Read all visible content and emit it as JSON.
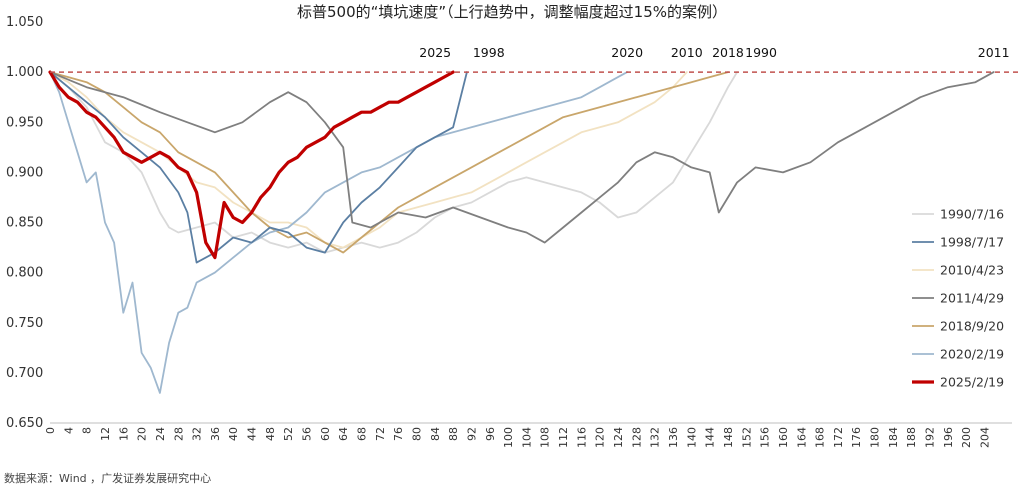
{
  "title": "标普500的“填坑速度”（上行趋势中，调整幅度超过15%的案例）",
  "source": "数据来源：Wind ，广发证券发展研究中心",
  "chart_data": {
    "type": "line",
    "ylim": [
      0.65,
      1.05
    ],
    "yticks": [
      "0.650",
      "0.700",
      "0.750",
      "0.800",
      "0.850",
      "0.900",
      "0.950",
      "1.000",
      "1.050"
    ],
    "xlim": [
      0,
      210
    ],
    "xticks": [
      "0",
      "4",
      "8",
      "12",
      "16",
      "20",
      "24",
      "28",
      "32",
      "36",
      "40",
      "44",
      "48",
      "52",
      "56",
      "60",
      "64",
      "68",
      "72",
      "76",
      "80",
      "84",
      "88",
      "92",
      "96",
      "100",
      "104",
      "108",
      "112",
      "116",
      "120",
      "124",
      "128",
      "132",
      "136",
      "140",
      "144",
      "148",
      "152",
      "156",
      "160",
      "164",
      "168",
      "172",
      "176",
      "180",
      "184",
      "188",
      "192",
      "196",
      "200",
      "204"
    ],
    "reference_line": 1.0,
    "series": [
      {
        "name": "1990/7/16",
        "color": "#d9d9d9",
        "width": 1.8,
        "end_label": "1990",
        "points": [
          [
            0,
            1.0
          ],
          [
            4,
            0.985
          ],
          [
            8,
            0.965
          ],
          [
            12,
            0.93
          ],
          [
            16,
            0.92
          ],
          [
            20,
            0.9
          ],
          [
            24,
            0.86
          ],
          [
            26,
            0.845
          ],
          [
            28,
            0.84
          ],
          [
            32,
            0.845
          ],
          [
            36,
            0.85
          ],
          [
            40,
            0.835
          ],
          [
            44,
            0.84
          ],
          [
            48,
            0.83
          ],
          [
            52,
            0.825
          ],
          [
            56,
            0.83
          ],
          [
            60,
            0.82
          ],
          [
            64,
            0.825
          ],
          [
            68,
            0.83
          ],
          [
            72,
            0.825
          ],
          [
            76,
            0.83
          ],
          [
            80,
            0.84
          ],
          [
            84,
            0.855
          ],
          [
            88,
            0.865
          ],
          [
            92,
            0.87
          ],
          [
            96,
            0.88
          ],
          [
            100,
            0.89
          ],
          [
            104,
            0.895
          ],
          [
            108,
            0.89
          ],
          [
            112,
            0.885
          ],
          [
            116,
            0.88
          ],
          [
            120,
            0.87
          ],
          [
            124,
            0.855
          ],
          [
            128,
            0.86
          ],
          [
            132,
            0.875
          ],
          [
            136,
            0.89
          ],
          [
            140,
            0.92
          ],
          [
            144,
            0.95
          ],
          [
            148,
            0.985
          ],
          [
            150,
            1.0
          ]
        ]
      },
      {
        "name": "1998/7/17",
        "color": "#5b7fa3",
        "width": 1.8,
        "end_label": "1998",
        "points": [
          [
            0,
            1.0
          ],
          [
            4,
            0.985
          ],
          [
            8,
            0.97
          ],
          [
            12,
            0.955
          ],
          [
            16,
            0.935
          ],
          [
            20,
            0.92
          ],
          [
            24,
            0.905
          ],
          [
            28,
            0.88
          ],
          [
            30,
            0.86
          ],
          [
            32,
            0.81
          ],
          [
            36,
            0.82
          ],
          [
            40,
            0.835
          ],
          [
            44,
            0.83
          ],
          [
            48,
            0.845
          ],
          [
            52,
            0.84
          ],
          [
            56,
            0.825
          ],
          [
            60,
            0.82
          ],
          [
            64,
            0.85
          ],
          [
            68,
            0.87
          ],
          [
            72,
            0.885
          ],
          [
            76,
            0.905
          ],
          [
            80,
            0.925
          ],
          [
            84,
            0.935
          ],
          [
            88,
            0.945
          ],
          [
            91,
            1.0
          ]
        ]
      },
      {
        "name": "2010/4/23",
        "color": "#f2e2c2",
        "width": 1.8,
        "end_label": "2010",
        "points": [
          [
            0,
            1.0
          ],
          [
            4,
            0.99
          ],
          [
            8,
            0.975
          ],
          [
            12,
            0.955
          ],
          [
            16,
            0.94
          ],
          [
            20,
            0.93
          ],
          [
            24,
            0.92
          ],
          [
            28,
            0.905
          ],
          [
            32,
            0.89
          ],
          [
            36,
            0.885
          ],
          [
            40,
            0.87
          ],
          [
            44,
            0.86
          ],
          [
            48,
            0.85
          ],
          [
            52,
            0.85
          ],
          [
            56,
            0.845
          ],
          [
            60,
            0.83
          ],
          [
            64,
            0.825
          ],
          [
            68,
            0.835
          ],
          [
            72,
            0.845
          ],
          [
            76,
            0.86
          ],
          [
            80,
            0.865
          ],
          [
            84,
            0.87
          ],
          [
            88,
            0.875
          ],
          [
            92,
            0.88
          ],
          [
            96,
            0.89
          ],
          [
            100,
            0.9
          ],
          [
            104,
            0.91
          ],
          [
            108,
            0.92
          ],
          [
            112,
            0.93
          ],
          [
            116,
            0.94
          ],
          [
            120,
            0.945
          ],
          [
            124,
            0.95
          ],
          [
            128,
            0.96
          ],
          [
            132,
            0.97
          ],
          [
            136,
            0.985
          ],
          [
            139,
            1.0
          ]
        ]
      },
      {
        "name": "2011/4/29",
        "color": "#7f7f7f",
        "width": 1.8,
        "end_label": "2011",
        "points": [
          [
            0,
            1.0
          ],
          [
            8,
            0.985
          ],
          [
            16,
            0.975
          ],
          [
            24,
            0.96
          ],
          [
            30,
            0.95
          ],
          [
            36,
            0.94
          ],
          [
            42,
            0.95
          ],
          [
            48,
            0.97
          ],
          [
            52,
            0.98
          ],
          [
            56,
            0.97
          ],
          [
            60,
            0.95
          ],
          [
            64,
            0.925
          ],
          [
            66,
            0.85
          ],
          [
            70,
            0.845
          ],
          [
            76,
            0.86
          ],
          [
            82,
            0.855
          ],
          [
            88,
            0.865
          ],
          [
            94,
            0.855
          ],
          [
            100,
            0.845
          ],
          [
            104,
            0.84
          ],
          [
            108,
            0.83
          ],
          [
            112,
            0.845
          ],
          [
            116,
            0.86
          ],
          [
            120,
            0.875
          ],
          [
            124,
            0.89
          ],
          [
            128,
            0.91
          ],
          [
            132,
            0.92
          ],
          [
            136,
            0.915
          ],
          [
            140,
            0.905
          ],
          [
            144,
            0.9
          ],
          [
            146,
            0.86
          ],
          [
            150,
            0.89
          ],
          [
            154,
            0.905
          ],
          [
            160,
            0.9
          ],
          [
            166,
            0.91
          ],
          [
            172,
            0.93
          ],
          [
            178,
            0.945
          ],
          [
            184,
            0.96
          ],
          [
            190,
            0.975
          ],
          [
            196,
            0.985
          ],
          [
            202,
            0.99
          ],
          [
            206,
            1.0
          ]
        ]
      },
      {
        "name": "2018/9/20",
        "color": "#c9a66b",
        "width": 1.8,
        "end_label": "2018",
        "points": [
          [
            0,
            1.0
          ],
          [
            4,
            0.995
          ],
          [
            8,
            0.99
          ],
          [
            12,
            0.98
          ],
          [
            16,
            0.965
          ],
          [
            20,
            0.95
          ],
          [
            24,
            0.94
          ],
          [
            28,
            0.92
          ],
          [
            32,
            0.91
          ],
          [
            36,
            0.9
          ],
          [
            40,
            0.88
          ],
          [
            44,
            0.86
          ],
          [
            48,
            0.845
          ],
          [
            52,
            0.835
          ],
          [
            56,
            0.84
          ],
          [
            60,
            0.83
          ],
          [
            64,
            0.82
          ],
          [
            68,
            0.835
          ],
          [
            72,
            0.85
          ],
          [
            76,
            0.865
          ],
          [
            80,
            0.875
          ],
          [
            84,
            0.885
          ],
          [
            88,
            0.895
          ],
          [
            92,
            0.905
          ],
          [
            96,
            0.915
          ],
          [
            100,
            0.925
          ],
          [
            104,
            0.935
          ],
          [
            108,
            0.945
          ],
          [
            112,
            0.955
          ],
          [
            116,
            0.96
          ],
          [
            120,
            0.965
          ],
          [
            124,
            0.97
          ],
          [
            128,
            0.975
          ],
          [
            132,
            0.98
          ],
          [
            136,
            0.985
          ],
          [
            140,
            0.99
          ],
          [
            144,
            0.995
          ],
          [
            148,
            1.0
          ]
        ]
      },
      {
        "name": "2020/2/19",
        "color": "#9fb8cf",
        "width": 1.8,
        "end_label": "2020",
        "points": [
          [
            0,
            1.0
          ],
          [
            2,
            0.98
          ],
          [
            4,
            0.95
          ],
          [
            6,
            0.92
          ],
          [
            8,
            0.89
          ],
          [
            10,
            0.9
          ],
          [
            12,
            0.85
          ],
          [
            14,
            0.83
          ],
          [
            16,
            0.76
          ],
          [
            18,
            0.79
          ],
          [
            20,
            0.72
          ],
          [
            22,
            0.705
          ],
          [
            24,
            0.68
          ],
          [
            26,
            0.73
          ],
          [
            28,
            0.76
          ],
          [
            30,
            0.765
          ],
          [
            32,
            0.79
          ],
          [
            36,
            0.8
          ],
          [
            40,
            0.815
          ],
          [
            44,
            0.83
          ],
          [
            48,
            0.84
          ],
          [
            52,
            0.845
          ],
          [
            56,
            0.86
          ],
          [
            60,
            0.88
          ],
          [
            64,
            0.89
          ],
          [
            68,
            0.9
          ],
          [
            72,
            0.905
          ],
          [
            76,
            0.915
          ],
          [
            80,
            0.925
          ],
          [
            84,
            0.935
          ],
          [
            88,
            0.94
          ],
          [
            92,
            0.945
          ],
          [
            96,
            0.95
          ],
          [
            100,
            0.955
          ],
          [
            104,
            0.96
          ],
          [
            108,
            0.965
          ],
          [
            112,
            0.97
          ],
          [
            116,
            0.975
          ],
          [
            120,
            0.985
          ],
          [
            124,
            0.995
          ],
          [
            126,
            1.0
          ]
        ]
      },
      {
        "name": "2025/2/19",
        "color": "#c00000",
        "width": 3.2,
        "end_label": "2025",
        "points": [
          [
            0,
            1.0
          ],
          [
            2,
            0.985
          ],
          [
            4,
            0.975
          ],
          [
            6,
            0.97
          ],
          [
            8,
            0.96
          ],
          [
            10,
            0.955
          ],
          [
            12,
            0.945
          ],
          [
            14,
            0.935
          ],
          [
            16,
            0.92
          ],
          [
            18,
            0.915
          ],
          [
            20,
            0.91
          ],
          [
            22,
            0.915
          ],
          [
            24,
            0.92
          ],
          [
            26,
            0.915
          ],
          [
            28,
            0.905
          ],
          [
            30,
            0.9
          ],
          [
            32,
            0.88
          ],
          [
            34,
            0.83
          ],
          [
            36,
            0.815
          ],
          [
            38,
            0.87
          ],
          [
            40,
            0.855
          ],
          [
            42,
            0.85
          ],
          [
            44,
            0.86
          ],
          [
            46,
            0.875
          ],
          [
            48,
            0.885
          ],
          [
            50,
            0.9
          ],
          [
            52,
            0.91
          ],
          [
            54,
            0.915
          ],
          [
            56,
            0.925
          ],
          [
            58,
            0.93
          ],
          [
            60,
            0.935
          ],
          [
            62,
            0.945
          ],
          [
            64,
            0.95
          ],
          [
            66,
            0.955
          ],
          [
            68,
            0.96
          ],
          [
            70,
            0.96
          ],
          [
            72,
            0.965
          ],
          [
            74,
            0.97
          ],
          [
            76,
            0.97
          ],
          [
            78,
            0.975
          ],
          [
            80,
            0.98
          ],
          [
            82,
            0.985
          ],
          [
            84,
            0.99
          ],
          [
            86,
            0.995
          ],
          [
            88,
            1.0
          ]
        ]
      }
    ]
  }
}
